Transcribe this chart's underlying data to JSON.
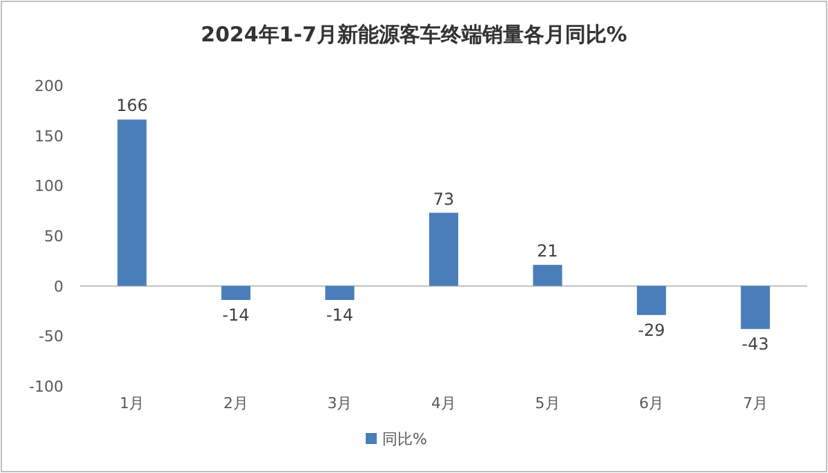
{
  "chart_data": {
    "type": "bar",
    "title": "2024年1-7月新能源客车终端销量各月同比%",
    "categories": [
      "1月",
      "2月",
      "3月",
      "4月",
      "5月",
      "6月",
      "7月"
    ],
    "series": [
      {
        "name": "同比%",
        "color": "#4a7ebb",
        "values": [
          166,
          -14,
          -14,
          73,
          21,
          -29,
          -43
        ]
      }
    ],
    "ylim": [
      -100,
      200
    ],
    "yticks": [
      -100,
      -50,
      0,
      50,
      100,
      150,
      200
    ],
    "data_labels": true,
    "legend": "bottom"
  }
}
